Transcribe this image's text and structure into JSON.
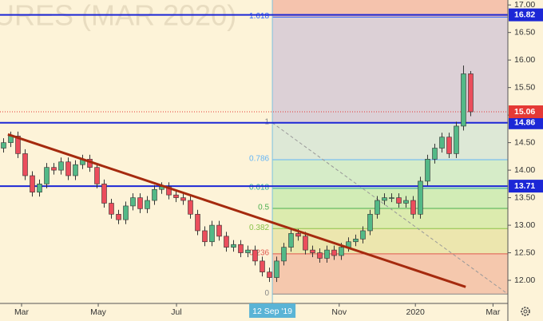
{
  "chart_data": {
    "type": "candlestick",
    "watermark": "URES (MAR 2020)",
    "x": [
      0,
      1,
      2,
      3,
      4,
      5,
      6,
      7,
      8,
      9,
      10,
      11,
      12,
      13,
      14,
      15,
      16,
      17,
      18,
      19,
      20,
      21,
      22,
      23,
      24,
      25,
      26,
      27,
      28,
      29,
      30,
      31,
      32,
      33,
      34,
      35,
      36,
      37,
      38,
      39,
      40,
      41,
      42,
      43,
      44,
      45,
      46,
      47,
      48,
      49,
      50,
      51,
      52,
      53,
      54,
      55,
      56,
      57,
      58,
      59,
      60,
      61,
      62,
      63,
      64,
      65
    ],
    "open": [
      14.4,
      14.5,
      14.62,
      14.3,
      13.9,
      13.6,
      13.75,
      14.05,
      14.0,
      14.15,
      13.9,
      14.1,
      14.2,
      14.05,
      13.75,
      13.4,
      13.2,
      13.1,
      13.35,
      13.5,
      13.3,
      13.45,
      13.65,
      13.7,
      13.55,
      13.5,
      13.45,
      13.2,
      12.9,
      12.7,
      13.0,
      12.8,
      12.6,
      12.65,
      12.5,
      12.55,
      12.35,
      12.15,
      12.05,
      12.35,
      12.6,
      12.85,
      12.8,
      12.55,
      12.5,
      12.4,
      12.55,
      12.45,
      12.6,
      12.7,
      12.75,
      12.9,
      13.2,
      13.45,
      13.5,
      13.5,
      13.4,
      13.45,
      13.2,
      13.8,
      14.2,
      14.4,
      14.6,
      14.3,
      14.8,
      15.75
    ],
    "high": [
      14.58,
      14.7,
      14.7,
      14.38,
      13.98,
      13.83,
      14.13,
      14.13,
      14.23,
      14.23,
      14.18,
      14.28,
      14.28,
      14.13,
      13.83,
      13.48,
      13.28,
      13.43,
      13.58,
      13.58,
      13.53,
      13.73,
      13.78,
      13.78,
      13.63,
      13.58,
      13.53,
      13.28,
      12.98,
      13.08,
      13.08,
      12.88,
      12.73,
      12.73,
      12.63,
      12.63,
      12.43,
      12.23,
      12.43,
      12.68,
      12.93,
      12.93,
      12.88,
      12.63,
      12.58,
      12.63,
      12.63,
      12.68,
      12.78,
      12.83,
      12.98,
      13.28,
      13.53,
      13.58,
      13.58,
      13.58,
      13.53,
      13.53,
      13.88,
      14.28,
      14.48,
      14.68,
      14.68,
      14.88,
      15.9,
      15.8
    ],
    "low": [
      14.32,
      14.42,
      14.22,
      13.82,
      13.52,
      13.52,
      13.67,
      13.92,
      13.92,
      13.82,
      13.82,
      14.02,
      13.97,
      13.67,
      13.32,
      13.12,
      13.02,
      13.02,
      13.27,
      13.22,
      13.22,
      13.37,
      13.57,
      13.47,
      13.42,
      13.37,
      13.12,
      12.82,
      12.62,
      12.62,
      12.72,
      12.52,
      12.52,
      12.42,
      12.42,
      12.27,
      12.07,
      11.97,
      11.97,
      12.27,
      12.52,
      12.72,
      12.47,
      12.42,
      12.32,
      12.32,
      12.37,
      12.37,
      12.52,
      12.62,
      12.67,
      12.82,
      13.12,
      13.37,
      13.42,
      13.32,
      13.32,
      13.12,
      13.12,
      13.72,
      14.12,
      14.32,
      14.22,
      14.22,
      14.72,
      14.98
    ],
    "close": [
      14.5,
      14.62,
      14.3,
      13.9,
      13.6,
      13.75,
      14.05,
      14.0,
      14.15,
      13.9,
      14.1,
      14.2,
      14.05,
      13.75,
      13.4,
      13.2,
      13.1,
      13.35,
      13.5,
      13.3,
      13.45,
      13.65,
      13.7,
      13.55,
      13.5,
      13.45,
      13.2,
      12.9,
      12.7,
      13.0,
      12.8,
      12.6,
      12.65,
      12.5,
      12.55,
      12.35,
      12.15,
      12.05,
      12.35,
      12.6,
      12.85,
      12.8,
      12.55,
      12.5,
      12.4,
      12.55,
      12.45,
      12.6,
      12.7,
      12.75,
      12.9,
      13.2,
      13.45,
      13.5,
      13.5,
      13.4,
      13.45,
      13.2,
      13.8,
      14.2,
      14.4,
      14.6,
      14.3,
      14.8,
      15.75,
      15.06
    ],
    "up_color": "#53b987",
    "down_color": "#eb4d5c",
    "xlim": [
      -0.5,
      70.17
    ],
    "ylim": [
      11.58,
      17.09
    ],
    "yticks": [
      {
        "value": 12,
        "label": "12.00"
      },
      {
        "value": 12.5,
        "label": "12.50"
      },
      {
        "value": 13,
        "label": "13.00"
      },
      {
        "value": 13.5,
        "label": "13.50"
      },
      {
        "value": 14,
        "label": "14.00"
      },
      {
        "value": 14.5,
        "label": "14.50"
      },
      {
        "value": 15,
        "label": "15.00"
      },
      {
        "value": 15.5,
        "label": "15.50"
      },
      {
        "value": 16,
        "label": "16.00"
      },
      {
        "value": 16.5,
        "label": "16.50"
      },
      {
        "value": 17,
        "label": "17.00"
      }
    ],
    "xticks": [
      {
        "value": 2.5,
        "label": "Mar"
      },
      {
        "value": 13.17,
        "label": "May"
      },
      {
        "value": 24.06,
        "label": "Jul"
      },
      {
        "value": 46.7,
        "label": "Nov"
      },
      {
        "value": 57.3,
        "label": "2020"
      },
      {
        "value": 68.1,
        "label": "Mar"
      }
    ],
    "highlight_x": {
      "value": 37.4,
      "label": "12 Sep '19"
    },
    "hlines": [
      {
        "value": 16.82,
        "label": "16.82"
      },
      {
        "value": 14.86,
        "label": "14.86"
      },
      {
        "value": 13.71,
        "label": "13.71"
      }
    ],
    "hline_color": "#1c27d6",
    "last_price": {
      "value": 15.06,
      "label": "15.06",
      "color": "#e53935"
    },
    "fib": {
      "start_x": 37.4,
      "end_x": 70.17,
      "top_color": "#f5c3ad",
      "levels": [
        {
          "level": 0,
          "price": 11.75,
          "color": "#888888",
          "fill": "#f5c8ad"
        },
        {
          "level": 0.236,
          "price": 12.48,
          "color": "#e05a4f",
          "fill": "#ece6ae"
        },
        {
          "level": 0.382,
          "price": 12.94,
          "color": "#8bc34a",
          "fill": "#dcebae"
        },
        {
          "level": 0.5,
          "price": 13.305,
          "color": "#4caf50",
          "fill": "#d2ecb6"
        },
        {
          "level": 0.618,
          "price": 13.67,
          "color": "#26a69a",
          "fill": "#d6ecc8"
        },
        {
          "level": 0.786,
          "price": 14.19,
          "color": "#64b5f6",
          "fill": "#dde8d6"
        },
        {
          "level": 1,
          "price": 14.86,
          "color": "#888888",
          "fill": "#dcd0d6"
        },
        {
          "level": 1.618,
          "price": 16.78,
          "color": "#2962ff",
          "fill": "#dcd0d6"
        }
      ]
    },
    "trendline": {
      "x": [
        0.6,
        64.3
      ],
      "y": [
        14.65,
        11.88
      ],
      "color": "#a52a0e"
    }
  }
}
